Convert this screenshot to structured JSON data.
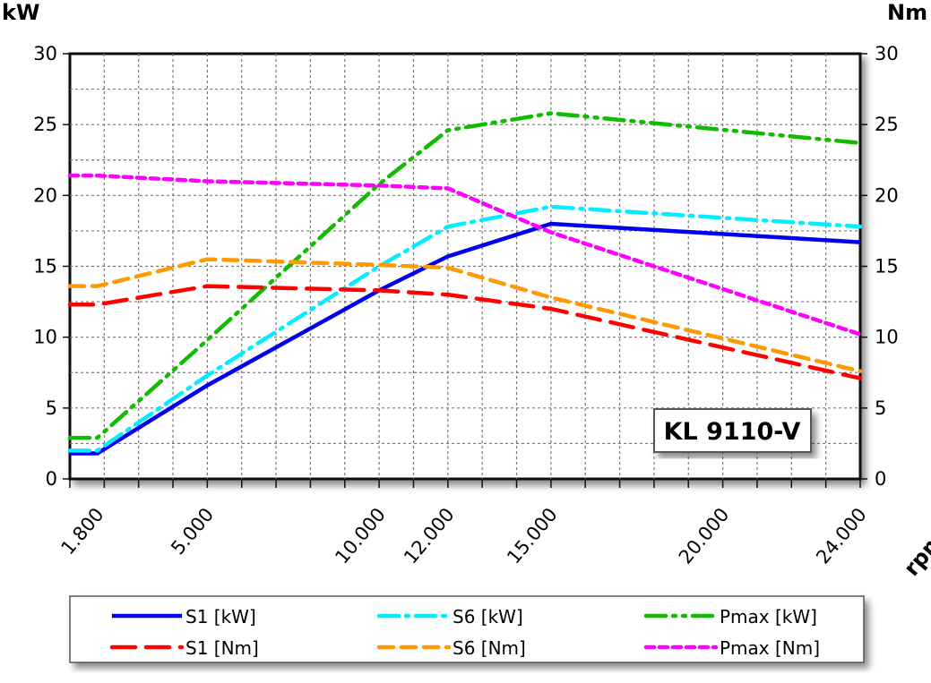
{
  "chart_data": {
    "type": "line",
    "title": "",
    "badge": "KL 9110-V",
    "xlabel": "rpm",
    "ylabel_left": "kW",
    "ylabel_right": "Nm",
    "xlim": [
      1000,
      24000
    ],
    "ylim_left": [
      0,
      30
    ],
    "ylim_right": [
      0,
      30
    ],
    "grid": true,
    "legend_placement": "bottom",
    "x_tick_labels": [
      {
        "value": 1800,
        "label": "1.800"
      },
      {
        "value": 5000,
        "label": "5.000"
      },
      {
        "value": 10000,
        "label": "10.000"
      },
      {
        "value": 12000,
        "label": "12.000"
      },
      {
        "value": 15000,
        "label": "15.000"
      },
      {
        "value": 20000,
        "label": "20.000"
      },
      {
        "value": 24000,
        "label": "24.000"
      }
    ],
    "y_tick_labels": [
      "0",
      "5",
      "10",
      "15",
      "20",
      "25",
      "30"
    ],
    "x": [
      1000,
      1800,
      5000,
      10000,
      12000,
      15000,
      24000
    ],
    "series": [
      {
        "name": "S1 [kW]",
        "axis": "left",
        "color": "#0000ee",
        "dash": "solid",
        "values": [
          1.8,
          1.8,
          6.6,
          13.3,
          15.7,
          18.0,
          16.7
        ]
      },
      {
        "name": "S6 [kW]",
        "axis": "left",
        "color": "#00eeff",
        "dash": "dashdot",
        "values": [
          2.0,
          2.0,
          7.3,
          15.0,
          17.8,
          19.2,
          17.8
        ]
      },
      {
        "name": "Pmax [kW]",
        "axis": "left",
        "color": "#11bb00",
        "dash": "dashdotdot",
        "values": [
          2.9,
          2.9,
          9.8,
          20.8,
          24.6,
          25.8,
          23.7
        ]
      },
      {
        "name": "S1 [Nm]",
        "axis": "right",
        "color": "#ff0000",
        "dash": "longdash",
        "values": [
          12.3,
          12.3,
          13.6,
          13.3,
          13.0,
          12.0,
          7.1
        ]
      },
      {
        "name": "S6 [Nm]",
        "axis": "right",
        "color": "#ff9900",
        "dash": "dash",
        "values": [
          13.6,
          13.6,
          15.5,
          15.1,
          14.9,
          12.8,
          7.6
        ]
      },
      {
        "name": "Pmax [Nm]",
        "axis": "right",
        "color": "#ff00ff",
        "dash": "shortdash",
        "values": [
          21.4,
          21.4,
          21.0,
          20.7,
          20.5,
          17.4,
          10.2
        ]
      }
    ]
  }
}
